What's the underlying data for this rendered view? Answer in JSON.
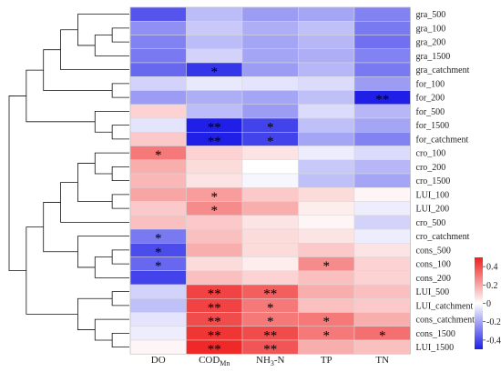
{
  "chart_data": {
    "type": "heatmap",
    "columns": [
      "DO",
      "COD",
      "NH",
      "TP",
      "TN"
    ],
    "column_subscripts": [
      "",
      "Mn",
      "3",
      "",
      ""
    ],
    "column_suffix": [
      "",
      "",
      "-N",
      "",
      ""
    ],
    "rows": [
      "gra_500",
      "gra_100",
      "gra_200",
      "gra_1500",
      "gra_catchment",
      "for_100",
      "for_200",
      "for_500",
      "for_1500",
      "for_catchment",
      "cro_100",
      "cro_200",
      "cro_1500",
      "LUI_100",
      "LUI_200",
      "cro_500",
      "cro_catchment",
      "cons_500",
      "cons_100",
      "cons_200",
      "LUI_500",
      "LUI_catchment",
      "cons_catchment",
      "cons_1500",
      "LUI_1500"
    ],
    "values": [
      [
        -0.38,
        -0.15,
        -0.22,
        -0.2,
        -0.28
      ],
      [
        -0.25,
        -0.12,
        -0.18,
        -0.14,
        -0.3
      ],
      [
        -0.28,
        -0.15,
        -0.2,
        -0.16,
        -0.32
      ],
      [
        -0.3,
        -0.1,
        -0.2,
        -0.18,
        -0.28
      ],
      [
        -0.34,
        -0.45,
        -0.22,
        -0.16,
        -0.3
      ],
      [
        -0.1,
        -0.05,
        -0.06,
        -0.08,
        -0.22
      ],
      [
        -0.22,
        -0.18,
        -0.2,
        -0.14,
        -0.5
      ],
      [
        0.1,
        -0.15,
        -0.22,
        -0.08,
        -0.16
      ],
      [
        -0.06,
        -0.55,
        -0.42,
        -0.14,
        -0.2
      ],
      [
        0.12,
        -0.56,
        -0.42,
        -0.2,
        -0.28
      ],
      [
        0.3,
        0.1,
        0.06,
        -0.04,
        -0.08
      ],
      [
        0.18,
        0.08,
        0.0,
        -0.12,
        -0.16
      ],
      [
        0.16,
        0.06,
        -0.02,
        -0.14,
        -0.2
      ],
      [
        0.2,
        0.22,
        0.12,
        0.08,
        0.02
      ],
      [
        0.12,
        0.26,
        0.18,
        0.04,
        -0.04
      ],
      [
        0.14,
        0.12,
        0.06,
        0.02,
        -0.1
      ],
      [
        -0.3,
        0.14,
        0.08,
        0.06,
        -0.04
      ],
      [
        -0.4,
        0.18,
        0.08,
        0.12,
        0.06
      ],
      [
        -0.34,
        0.08,
        0.04,
        0.26,
        0.1
      ],
      [
        -0.42,
        0.14,
        0.1,
        0.14,
        0.1
      ],
      [
        -0.1,
        0.42,
        0.36,
        0.18,
        0.14
      ],
      [
        -0.14,
        0.42,
        0.3,
        0.14,
        0.12
      ],
      [
        -0.06,
        0.4,
        0.3,
        0.3,
        0.18
      ],
      [
        -0.04,
        0.45,
        0.4,
        0.3,
        0.32
      ],
      [
        0.02,
        0.48,
        0.38,
        0.18,
        0.14
      ]
    ],
    "significance": [
      [
        "",
        "",
        "",
        "",
        ""
      ],
      [
        "",
        "",
        "",
        "",
        ""
      ],
      [
        "",
        "",
        "",
        "",
        ""
      ],
      [
        "",
        "",
        "",
        "",
        ""
      ],
      [
        "",
        "*",
        "",
        "",
        ""
      ],
      [
        "",
        "",
        "",
        "",
        ""
      ],
      [
        "",
        "",
        "",
        "",
        "**"
      ],
      [
        "",
        "",
        "",
        "",
        ""
      ],
      [
        "",
        "**",
        "*",
        "",
        ""
      ],
      [
        "",
        "**",
        "*",
        "",
        ""
      ],
      [
        "*",
        "",
        "",
        "",
        ""
      ],
      [
        "",
        "",
        "",
        "",
        ""
      ],
      [
        "",
        "",
        "",
        "",
        ""
      ],
      [
        "",
        "*",
        "",
        "",
        ""
      ],
      [
        "",
        "*",
        "",
        "",
        ""
      ],
      [
        "",
        "",
        "",
        "",
        ""
      ],
      [
        "*",
        "",
        "",
        "",
        ""
      ],
      [
        "*",
        "",
        "",
        "",
        ""
      ],
      [
        "*",
        "",
        "",
        "*",
        ""
      ],
      [
        "",
        "",
        "",
        "",
        ""
      ],
      [
        "",
        "**",
        "**",
        "",
        ""
      ],
      [
        "",
        "**",
        "*",
        "",
        ""
      ],
      [
        "",
        "**",
        "*",
        "*",
        ""
      ],
      [
        "",
        "**",
        "**",
        "*",
        "*"
      ],
      [
        "",
        "**",
        "**",
        "",
        ""
      ]
    ],
    "colorbar": {
      "ticks": [
        0.4,
        0.2,
        0,
        -0.2,
        -0.4
      ],
      "tick_labels": [
        "0.4",
        "0.2",
        "0",
        "-0.2",
        "-0.4"
      ],
      "range": [
        -0.5,
        0.5
      ],
      "low_color": "#1f1fe8",
      "mid_color": "#ffffff",
      "high_color": "#ee1f1f"
    },
    "dendrogram": true,
    "legend_position": "right"
  }
}
